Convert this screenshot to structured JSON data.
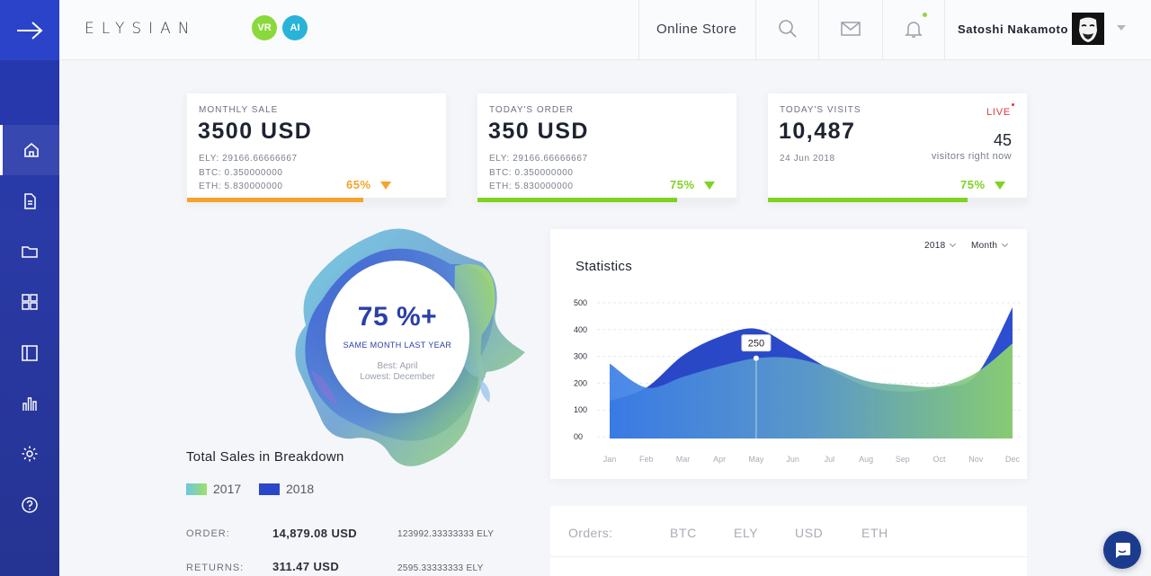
{
  "header": {
    "logo": "ELYSIAN",
    "badges": [
      {
        "label": "VR",
        "color": "#8ad93a"
      },
      {
        "label": "AI",
        "color": "#29b3d8"
      }
    ],
    "store_label": "Online Store",
    "user_name": "Satoshi Nakamoto"
  },
  "sidebar": {
    "items": [
      {
        "icon": "home-icon",
        "active": true
      },
      {
        "icon": "document-icon",
        "active": false
      },
      {
        "icon": "folder-icon",
        "active": false
      },
      {
        "icon": "grid-icon",
        "active": false
      },
      {
        "icon": "layout-icon",
        "active": false
      },
      {
        "icon": "bar-chart-icon",
        "active": false
      },
      {
        "icon": "gear-icon",
        "active": false
      },
      {
        "icon": "help-icon",
        "active": false
      }
    ]
  },
  "cards": {
    "monthly": {
      "label": "MONTHLY SALE",
      "value": "3500 USD",
      "ely": "ELY:  29166.66666667",
      "btc": "BTC: 0.350000000",
      "eth": "ETH: 5.830000000",
      "pct": "65%",
      "progress": 0.68,
      "color": "#f4a32c"
    },
    "order": {
      "label": "TODAY'S ORDER",
      "value": "350 USD",
      "ely": "ELY:  29166.66666667",
      "btc": "BTC: 0.350000000",
      "eth": "ETH: 5.830000000",
      "pct": "75%",
      "progress": 0.77,
      "color": "#7ed321"
    },
    "visits": {
      "label": "TODAY'S VISITS",
      "value": "10,487",
      "date": "24 Jun 2018",
      "live": "LIVE",
      "now_count": "45",
      "now_text": "visitors right now",
      "pct": "75%",
      "progress": 0.77,
      "color": "#7ed321"
    }
  },
  "breakdown": {
    "pct": "75 %+",
    "subtitle": "SAME MONTH LAST YEAR",
    "best": "Best: April",
    "lowest": "Lowest: December",
    "title": "Total Sales in Breakdown",
    "legend": [
      {
        "label": "2017"
      },
      {
        "label": "2018"
      }
    ],
    "rows": [
      {
        "label": "ORDER:",
        "value": "14,879.08 USD",
        "ely": "123992.33333333 ELY"
      },
      {
        "label": "RETURNS:",
        "value": "311.47 USD",
        "ely": "2595.33333333 ELY"
      }
    ]
  },
  "statistics": {
    "title": "Statistics",
    "year": "2018",
    "period": "Month",
    "tooltip": "250"
  },
  "chart_data": {
    "type": "area",
    "categories": [
      "Jan",
      "Feb",
      "Mar",
      "Apr",
      "May",
      "Jun",
      "Jul",
      "Aug",
      "Sep",
      "Oct",
      "Nov",
      "Dec"
    ],
    "yticks": [
      "500",
      "400",
      "300",
      "200",
      "100",
      "00"
    ],
    "ylim": [
      0,
      500
    ],
    "series": [
      {
        "values": [
          280,
          190,
          230,
          270,
          300,
          300,
          265,
          215,
          200,
          195,
          245,
          355
        ]
      },
      {
        "values": [
          140,
          190,
          310,
          380,
          410,
          340,
          260,
          195,
          175,
          190,
          235,
          490
        ]
      }
    ],
    "grid": true
  },
  "orders": {
    "label": "Orders:",
    "tabs": [
      "BTC",
      "ELY",
      "USD",
      "ETH"
    ]
  }
}
